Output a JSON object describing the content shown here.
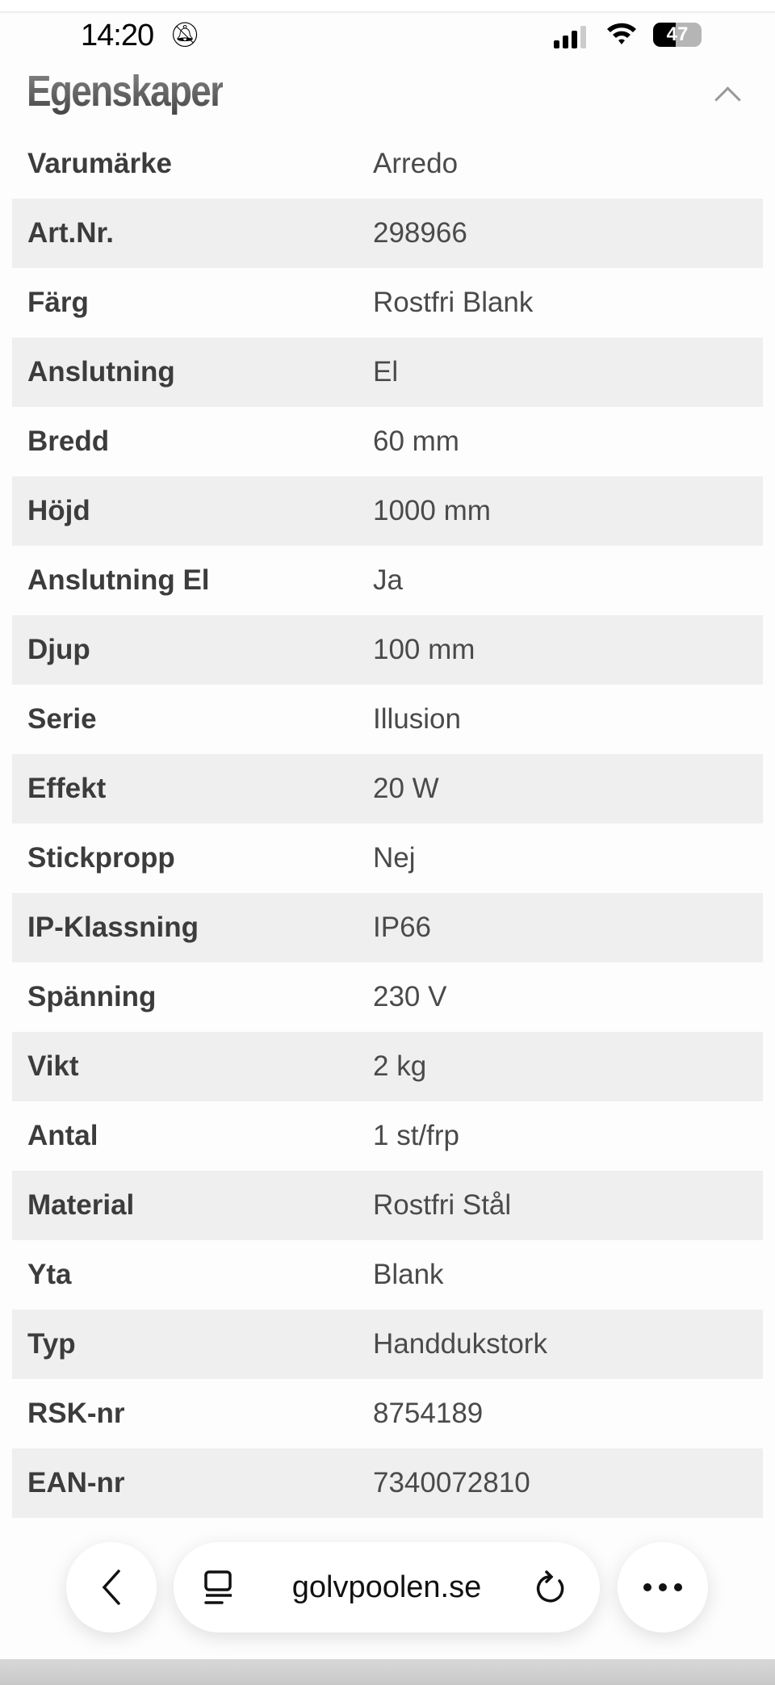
{
  "status_bar": {
    "time": "14:20",
    "battery": "47",
    "signal_bars": 3
  },
  "section": {
    "title": "Egenskaper",
    "collapse_icon": "chevron-up-icon"
  },
  "properties": [
    {
      "label": "Varumärke",
      "value": "Arredo"
    },
    {
      "label": "Art.Nr.",
      "value": "298966"
    },
    {
      "label": "Färg",
      "value": "Rostfri Blank"
    },
    {
      "label": "Anslutning",
      "value": "El"
    },
    {
      "label": "Bredd",
      "value": "60 mm"
    },
    {
      "label": "Höjd",
      "value": "1000 mm"
    },
    {
      "label": "Anslutning El",
      "value": "Ja"
    },
    {
      "label": "Djup",
      "value": "100 mm"
    },
    {
      "label": "Serie",
      "value": "Illusion"
    },
    {
      "label": "Effekt",
      "value": "20 W"
    },
    {
      "label": "Stickpropp",
      "value": "Nej"
    },
    {
      "label": "IP-Klassning",
      "value": "IP66"
    },
    {
      "label": "Spänning",
      "value": "230 V"
    },
    {
      "label": "Vikt",
      "value": "2 kg"
    },
    {
      "label": "Antal",
      "value": "1 st/frp"
    },
    {
      "label": "Material",
      "value": "Rostfri Stål"
    },
    {
      "label": "Yta",
      "value": "Blank"
    },
    {
      "label": "Typ",
      "value": "Handdukstork"
    },
    {
      "label": "RSK-nr",
      "value": "8754189"
    },
    {
      "label": "EAN-nr",
      "value": "7340072810"
    }
  ],
  "browser": {
    "url": "golvpoolen.se"
  }
}
